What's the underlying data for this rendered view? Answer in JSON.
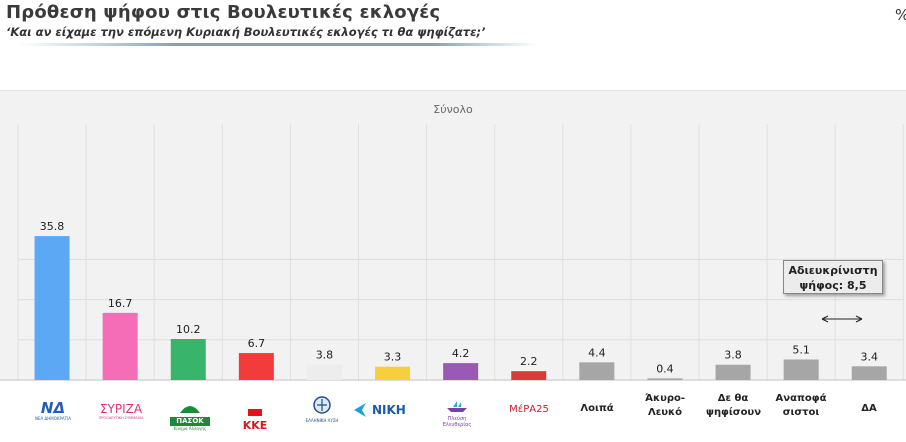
{
  "header": {
    "title": "Πρόθεση ψήφου στις Βουλευτικές εκλογές",
    "subtitle": "‘Και αν είχαμε την επόμενη Κυριακή Βουλευτικές εκλογές τι θα ψηφίζατε;’",
    "unit": "%"
  },
  "chart_data": {
    "type": "bar",
    "title": "Σύνολο",
    "categories": [
      "ΝΔ",
      "ΣΥΡΙΖΑ",
      "ΠΑΣΟΚ",
      "ΚΚΕ",
      "Ελληνική Λύση",
      "ΝΙΚΗ",
      "Πλεύση Ελευθερίας",
      "ΜέΡΑ25",
      "Λοιπά",
      "Άκυρο-Λευκό",
      "Δε θα ψηφίσουν",
      "Αναποφάσιστοι",
      "ΔΑ"
    ],
    "values": [
      35.8,
      16.7,
      10.2,
      6.7,
      3.8,
      3.3,
      4.2,
      2.2,
      4.4,
      0.4,
      3.8,
      5.1,
      3.4
    ],
    "value_labels": [
      "35.8",
      "16.7",
      "10.2",
      "6.7",
      "3.8",
      "3.3",
      "4.2",
      "2.2",
      "4.4",
      "0.4",
      "3.8",
      "5.1",
      "3.4"
    ],
    "colors": [
      "#5da8f5",
      "#f56cb7",
      "#38b56a",
      "#f23b3b",
      "#ededed",
      "#f7cf3c",
      "#9b59b6",
      "#d93a3a",
      "#a6a6a6",
      "#a6a6a6",
      "#a6a6a6",
      "#a6a6a6",
      "#a6a6a6"
    ],
    "ylim": [
      0,
      40
    ],
    "grid": true,
    "annotation": "Αδιευκρίνιστη ψήφος: 8,5"
  },
  "labels": {
    "logos": {
      "nd": "ΝΔ",
      "nd_sub": "ΝΕΑ ΔΗΜΟΚΡΑΤΙΑ",
      "syriza": "ΣΥΡΙΖΑ",
      "syriza_sub": "ΠΡΟΟΔΕΥΤΙΚΗ ΣΥΜΜΑΧΙΑ",
      "pasok": "ΠΑΣΟΚ",
      "pasok_sub": "Κίνημα Αλλαγής",
      "kke": "ΚΚΕ",
      "ellisi": "ΕΛΛΗΝΙΚΗ ΛΥΣΗ",
      "niki": "ΝΙΚΗ",
      "plefsi": "Πλεύση Ελευθερίας",
      "mera": "ΜέΡΑ25"
    },
    "loipa": "Λοιπά",
    "akyro_1": "Άκυρο-",
    "akyro_2": "Λευκό",
    "de_tha_1": "Δε θα",
    "de_tha_2": "ψηφίσουν",
    "anapof_1": "Αναποφά",
    "anapof_2": "σιστοι",
    "da": "ΔΑ",
    "annotation_1": "Αδιευκρίνιστη",
    "annotation_2": "ψήφος: 8,5"
  }
}
